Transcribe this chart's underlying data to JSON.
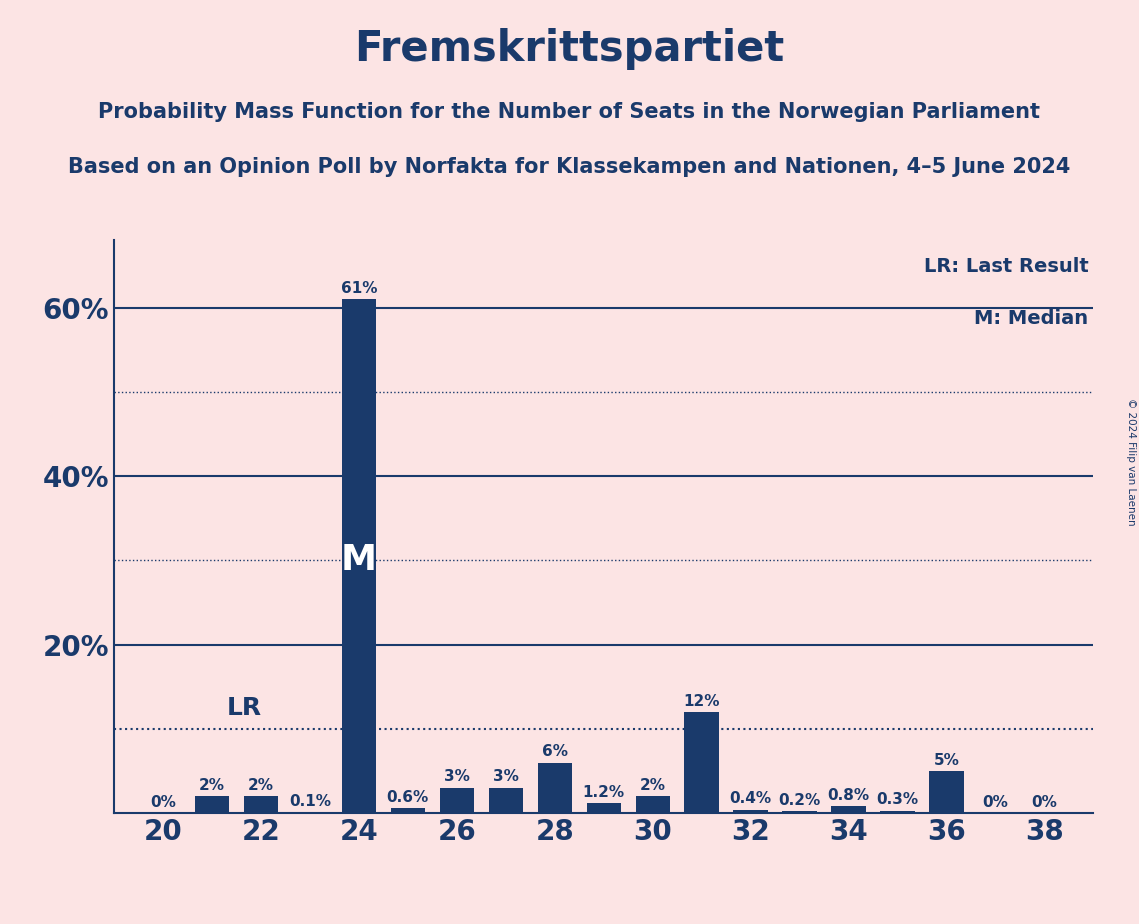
{
  "title": "Fremskrittspartiet",
  "subtitle1": "Probability Mass Function for the Number of Seats in the Norwegian Parliament",
  "subtitle2": "Based on an Opinion Poll by Norfakta for Klassekampen and Nationen, 4–5 June 2024",
  "copyright": "© 2024 Filip van Laenen",
  "background_color": "#fce4e4",
  "bar_color": "#1a3a6b",
  "text_color": "#1a3a6b",
  "seats": [
    20,
    21,
    22,
    23,
    24,
    25,
    26,
    27,
    28,
    29,
    30,
    31,
    32,
    33,
    34,
    35,
    36,
    37,
    38
  ],
  "probabilities": [
    0.0,
    2.0,
    2.0,
    0.1,
    61.0,
    0.6,
    3.0,
    3.0,
    6.0,
    1.2,
    2.0,
    12.0,
    0.4,
    0.2,
    0.8,
    0.3,
    5.0,
    0.0,
    0.0
  ],
  "bar_labels": [
    "0%",
    "2%",
    "2%",
    "0.1%",
    "61%",
    "0.6%",
    "3%",
    "3%",
    "6%",
    "1.2%",
    "2%",
    "12%",
    "0.4%",
    "0.2%",
    "0.8%",
    "0.3%",
    "5%",
    "0%",
    "0%"
  ],
  "median_seat": 24,
  "lr_value": 10.0,
  "ylim": [
    0,
    68
  ],
  "yticks_solid": [
    20,
    40,
    60
  ],
  "yticks_dotted": [
    10,
    30,
    50
  ],
  "legend_lr": "LR: Last Result",
  "legend_m": "M: Median",
  "xlabel_seats": [
    20,
    22,
    24,
    26,
    28,
    30,
    32,
    34,
    36,
    38
  ],
  "title_fontsize": 30,
  "subtitle_fontsize": 15,
  "tick_fontsize": 20,
  "bar_label_fontsize": 11
}
